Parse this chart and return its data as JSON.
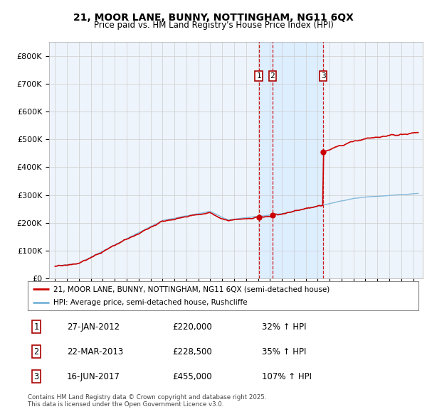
{
  "title_line1": "21, MOOR LANE, BUNNY, NOTTINGHAM, NG11 6QX",
  "title_line2": "Price paid vs. HM Land Registry's House Price Index (HPI)",
  "legend_label1": "21, MOOR LANE, BUNNY, NOTTINGHAM, NG11 6QX (semi-detached house)",
  "legend_label2": "HPI: Average price, semi-detached house, Rushcliffe",
  "transactions": [
    {
      "num": 1,
      "date_str": "27-JAN-2012",
      "date_x": 2012.07,
      "price": 220000,
      "pct": "32%",
      "dir": "↑"
    },
    {
      "num": 2,
      "date_str": "22-MAR-2013",
      "date_x": 2013.22,
      "price": 228500,
      "pct": "35%",
      "dir": "↑"
    },
    {
      "num": 3,
      "date_str": "16-JUN-2017",
      "date_x": 2017.46,
      "price": 455000,
      "pct": "107%",
      "dir": "↑"
    }
  ],
  "hpi_color": "#7ab4d8",
  "price_color": "#cc0000",
  "shade_color": "#ddeeff",
  "dashed_color": "#cc0000",
  "grid_color": "#cccccc",
  "bg_color": "#ffffff",
  "plot_bg_color": "#eef4fb",
  "ylim": [
    0,
    850000
  ],
  "xlim": [
    1994.5,
    2025.8
  ],
  "yticks": [
    0,
    100000,
    200000,
    300000,
    400000,
    500000,
    600000,
    700000,
    800000
  ],
  "ytick_labels": [
    "£0",
    "£100K",
    "£200K",
    "£300K",
    "£400K",
    "£500K",
    "£600K",
    "£700K",
    "£800K"
  ],
  "footer": "Contains HM Land Registry data © Crown copyright and database right 2025.\nThis data is licensed under the Open Government Licence v3.0.",
  "shade_start": 2012.07,
  "shade_end": 2017.46
}
